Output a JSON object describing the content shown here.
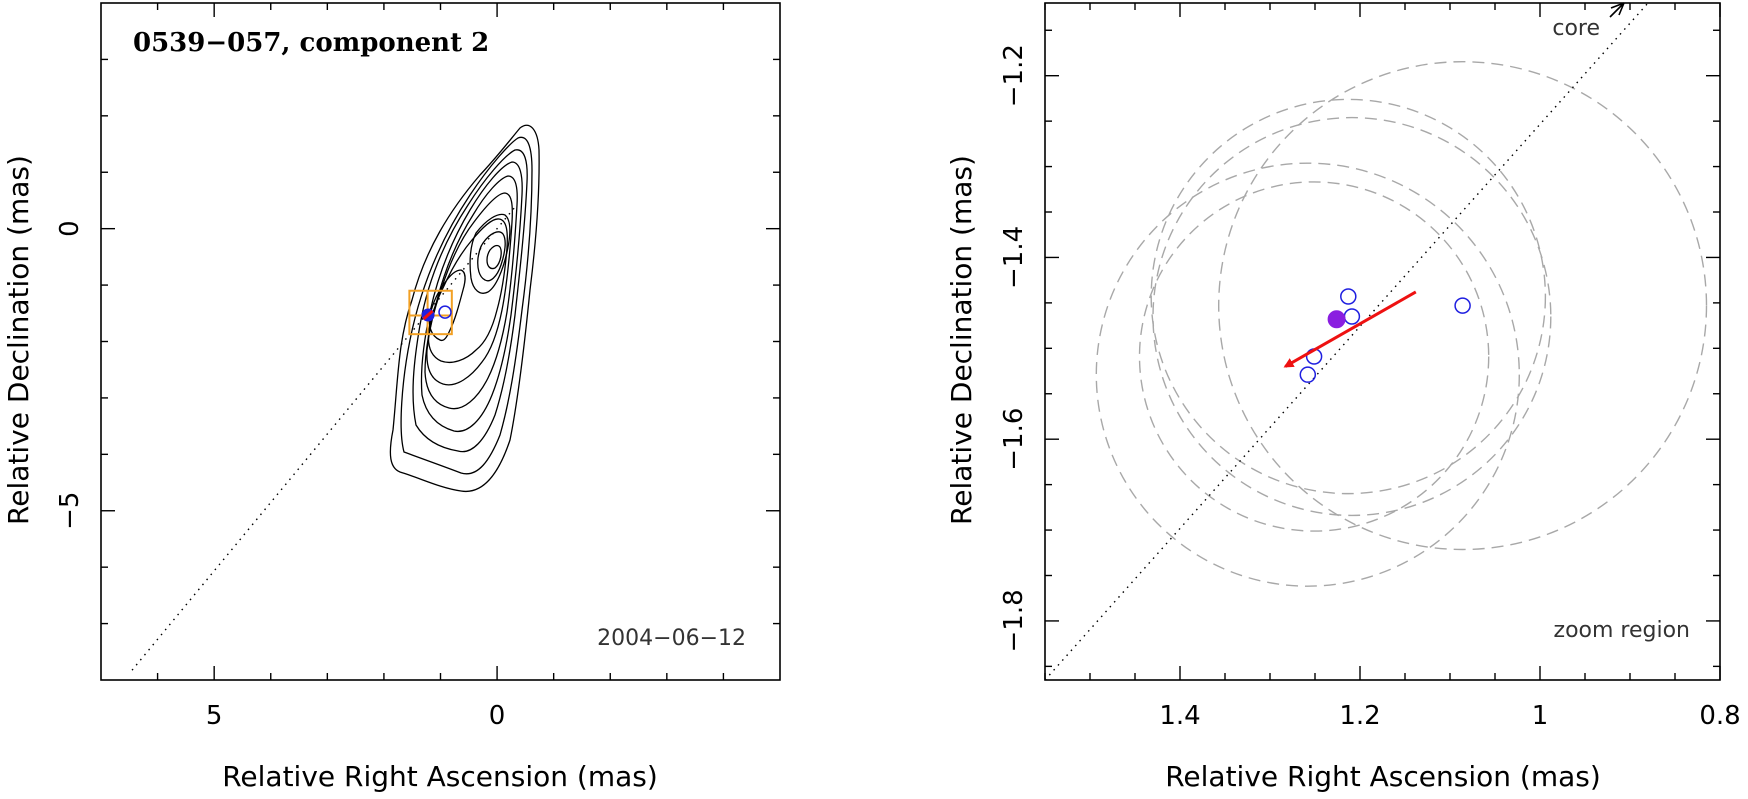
{
  "chart_data": [
    {
      "type": "scatter",
      "title": "0539−057, component 2",
      "annotation": "2004−06−12",
      "xlabel": "Relative Right Ascension (mas)",
      "ylabel": "Relative Declination (mas)",
      "xlim": [
        7,
        -5
      ],
      "ylim": [
        -8,
        4
      ],
      "x_tick_labels": [
        {
          "value": 5,
          "label": "5"
        },
        {
          "value": 0,
          "label": "0"
        }
      ],
      "y_tick_labels": [
        {
          "value": 0,
          "label": "0"
        },
        {
          "value": -5,
          "label": "−5"
        }
      ],
      "core_position": [
        0,
        0
      ],
      "component_position": [
        1.22,
        -1.48
      ],
      "zoom_box": {
        "x": [
          0.8,
          1.55
        ],
        "y": [
          -1.87,
          -1.1
        ]
      },
      "contours": "nested contour levels of the source brightness",
      "dotted_line": "from core through component"
    },
    {
      "type": "scatter",
      "title": "",
      "annotation": "zoom region",
      "core_label": "core",
      "xlabel": "Relative Right Ascension (mas)",
      "ylabel": "Relative Declination (mas)",
      "xlim": [
        1.55,
        0.8
      ],
      "ylim": [
        -1.865,
        -1.12
      ],
      "x_tick_labels": [
        {
          "value": 1.4,
          "label": "1.4"
        },
        {
          "value": 1.2,
          "label": "1.2"
        },
        {
          "value": 1,
          "label": "1"
        },
        {
          "value": 0.8,
          "label": "0.8"
        }
      ],
      "y_tick_labels": [
        {
          "value": -1.2,
          "label": "−1.2"
        },
        {
          "value": -1.4,
          "label": "−1.4"
        },
        {
          "value": -1.6,
          "label": "−1.6"
        },
        {
          "value": -1.8,
          "label": "−1.8"
        }
      ],
      "series": [
        {
          "marker": "open-circle",
          "x": [
            1.213,
            1.209,
            1.086,
            1.251,
            1.258
          ],
          "y": [
            -1.443,
            -1.465,
            -1.453,
            -1.509,
            -1.529
          ]
        },
        {
          "marker": "filled-circle",
          "x": [
            1.226
          ],
          "y": [
            -1.468
          ]
        }
      ],
      "uncertainty_circles": [
        {
          "x": 1.213,
          "y": -1.443,
          "r": 0.219
        },
        {
          "x": 1.209,
          "y": -1.465,
          "r": 0.221
        },
        {
          "x": 1.086,
          "y": -1.453,
          "r": 0.271
        },
        {
          "x": 1.251,
          "y": -1.509,
          "r": 0.194
        },
        {
          "x": 1.258,
          "y": -1.529,
          "r": 0.235
        }
      ],
      "velocity_arrow": {
        "from": [
          1.138,
          -1.438
        ],
        "to": [
          1.283,
          -1.52
        ],
        "color": "#ee1111"
      },
      "core_direction_line": {
        "from": [
          1.55,
          -1.865
        ],
        "to": [
          0.88,
          -1.12
        ]
      }
    }
  ],
  "colors": {
    "epoch_marker": "#1f1fe0",
    "mean_marker": "#8a1ee0",
    "arrow": "#ee1111",
    "zoom_box": "#f2a024",
    "circles": "#a8a8a8"
  }
}
